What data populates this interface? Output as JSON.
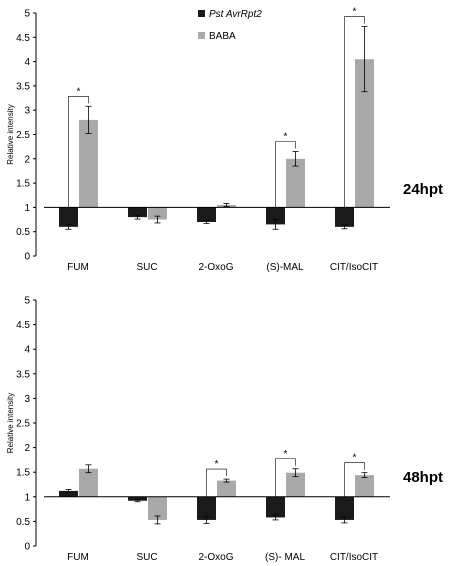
{
  "colors": {
    "pst": "#1a1a1a",
    "baba": "#a9a9a9",
    "axis": "#000000"
  },
  "legend": [
    {
      "name": "Pst AvrRpt2",
      "italic": true
    },
    {
      "name": "BABA",
      "italic": false
    }
  ],
  "chart_data": [
    {
      "type": "bar",
      "panel_label": "24hpt",
      "ylabel": "Relative intensity",
      "baseline": 1,
      "ylim": [
        0,
        5
      ],
      "yticks": [
        "0",
        "0.5",
        "1",
        "1.5",
        "2",
        "2.5",
        "3",
        "3.5",
        "4",
        "4.5",
        "5"
      ],
      "categories": [
        "FUM",
        "SUC",
        "2-OxoG",
        "(S)-MAL",
        "CIT/IsoCIT"
      ],
      "series": [
        {
          "name": "Pst AvrRpt2",
          "values": [
            0.6,
            0.8,
            0.7,
            0.65,
            0.6
          ],
          "errors": [
            0.05,
            0.04,
            0.03,
            0.1,
            0.04
          ]
        },
        {
          "name": "BABA",
          "values": [
            2.8,
            0.75,
            1.05,
            2.0,
            4.05
          ],
          "errors": [
            0.28,
            0.07,
            0.03,
            0.15,
            0.67
          ]
        }
      ],
      "significance": [
        {
          "category": 0,
          "label": "*"
        },
        {
          "category": 3,
          "label": "*"
        },
        {
          "category": 4,
          "label": "*"
        }
      ]
    },
    {
      "type": "bar",
      "panel_label": "48hpt",
      "ylabel": "Relative intensity",
      "baseline": 1,
      "ylim": [
        0,
        5
      ],
      "yticks": [
        "0",
        "0.5",
        "1",
        "1.5",
        "2",
        "2.5",
        "3",
        "3.5",
        "4",
        "4.5",
        "5"
      ],
      "categories": [
        "FUM",
        "SUC",
        "2-OxoG",
        "(S)- MAL",
        "CIT/IsoCIT"
      ],
      "series": [
        {
          "name": "Pst AvrRpt2",
          "values": [
            1.12,
            0.92,
            0.53,
            0.58,
            0.53
          ],
          "errors": [
            0.03,
            0.02,
            0.07,
            0.05,
            0.06
          ]
        },
        {
          "name": "BABA",
          "values": [
            1.57,
            0.53,
            1.33,
            1.49,
            1.44
          ],
          "errors": [
            0.08,
            0.08,
            0.03,
            0.08,
            0.05
          ]
        }
      ],
      "significance": [
        {
          "category": 2,
          "label": "*"
        },
        {
          "category": 3,
          "label": "*"
        },
        {
          "category": 4,
          "label": "*"
        }
      ]
    }
  ]
}
